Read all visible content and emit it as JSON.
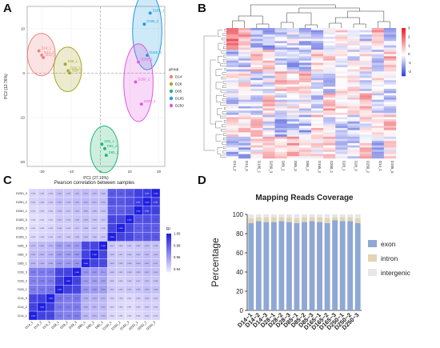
{
  "panels": {
    "a": "A",
    "b": "B",
    "c": "C",
    "d": "D"
  },
  "chart_data": [
    {
      "type": "scatter",
      "xlabel": "PC1 (27.19%)",
      "ylabel": "PC2 (12.76%)",
      "xlim": [
        -25,
        22
      ],
      "ylim": [
        -21,
        15
      ],
      "xticks": [
        -20,
        -10,
        0,
        10,
        20
      ],
      "yticks": [
        10,
        0,
        -10,
        -20
      ],
      "legend_title": "group",
      "legend_position": "right",
      "series": [
        {
          "name": "D14",
          "color": "#f08080",
          "points": [
            {
              "x": -21,
              "y": 5,
              "label": "D14_1"
            },
            {
              "x": -20,
              "y": 4,
              "label": "D14_2"
            },
            {
              "x": -19.5,
              "y": 3.5,
              "label": "D14_3"
            }
          ]
        },
        {
          "name": "D28",
          "color": "#a8a62a",
          "points": [
            {
              "x": -12,
              "y": 2,
              "label": "D28_1"
            },
            {
              "x": -11,
              "y": 0.5,
              "label": "D28_2"
            },
            {
              "x": -10.5,
              "y": 0,
              "label": "D28_3"
            }
          ]
        },
        {
          "name": "D85",
          "color": "#22b573",
          "points": [
            {
              "x": 0.5,
              "y": -16,
              "label": "D85_1"
            },
            {
              "x": 1.5,
              "y": -17,
              "label": "D85_2"
            },
            {
              "x": 2,
              "y": -18.5,
              "label": "D85_3"
            }
          ]
        },
        {
          "name": "D165",
          "color": "#1e9be0",
          "points": [
            {
              "x": 17,
              "y": 13.5,
              "label": "D165_1"
            },
            {
              "x": 15,
              "y": 11,
              "label": "D165_2"
            },
            {
              "x": 16,
              "y": 4,
              "label": "D165_3"
            }
          ]
        },
        {
          "name": "D250",
          "color": "#e056e0",
          "points": [
            {
              "x": 13,
              "y": 2.5,
              "label": "D250_1"
            },
            {
              "x": 12,
              "y": -2,
              "label": "D250_2"
            },
            {
              "x": 14,
              "y": -7,
              "label": "D250_3"
            }
          ]
        }
      ]
    },
    {
      "type": "heatmap",
      "columns": [
        "D14_2",
        "D14_3",
        "D165_1",
        "D250_3",
        "D85_1",
        "D85_3",
        "D85_2",
        "D165_2",
        "D250_1",
        "D28_1",
        "D28_3",
        "D250_2",
        "D14_1",
        "D165_3"
      ],
      "colorbar_ticks": [
        3,
        2,
        1,
        0,
        -1,
        -2
      ],
      "colorbar_range": [
        -2.5,
        3
      ],
      "colors": {
        "high": "#e8202a",
        "mid": "#ffffff",
        "low": "#2a3bd8"
      }
    },
    {
      "type": "heatmap",
      "title": "Pearson correlation between samples",
      "rows": [
        "D250_3",
        "D250_2",
        "D250_1",
        "D165_3",
        "D165_2",
        "D165_1",
        "D85_3",
        "D85_2",
        "D85_1",
        "D28_3",
        "D28_2",
        "D28_1",
        "D14_3",
        "D14_2",
        "D14_1"
      ],
      "columns": [
        "D14_1",
        "D14_2",
        "D14_3",
        "D28_1",
        "D28_2",
        "D28_3",
        "D85_1",
        "D85_2",
        "D85_3",
        "D165_1",
        "D165_2",
        "D165_3",
        "D250_1",
        "D250_2",
        "D250_3"
      ],
      "values": [
        [
          0.943,
          0.944,
          0.945,
          0.949,
          0.948,
          0.95,
          0.951,
          0.95,
          0.949,
          0.982,
          0.981,
          0.984,
          0.99,
          0.992,
          1.0
        ],
        [
          0.944,
          0.945,
          0.946,
          0.95,
          0.949,
          0.951,
          0.952,
          0.951,
          0.95,
          0.983,
          0.982,
          0.985,
          0.991,
          1.0,
          0.992
        ],
        [
          0.942,
          0.943,
          0.944,
          0.948,
          0.947,
          0.949,
          0.95,
          0.949,
          0.948,
          0.981,
          0.98,
          0.983,
          1.0,
          0.991,
          0.99
        ],
        [
          0.94,
          0.941,
          0.942,
          0.947,
          0.946,
          0.948,
          0.949,
          0.948,
          0.947,
          0.988,
          0.987,
          1.0,
          0.983,
          0.985,
          0.984
        ],
        [
          0.941,
          0.942,
          0.943,
          0.946,
          0.945,
          0.947,
          0.948,
          0.947,
          0.946,
          0.989,
          1.0,
          0.987,
          0.98,
          0.982,
          0.981
        ],
        [
          0.942,
          0.943,
          0.944,
          0.947,
          0.946,
          0.948,
          0.949,
          0.948,
          0.947,
          1.0,
          0.989,
          0.988,
          0.981,
          0.983,
          0.982
        ],
        [
          0.95,
          0.951,
          0.952,
          0.96,
          0.959,
          0.961,
          0.987,
          0.988,
          1.0,
          0.947,
          0.946,
          0.947,
          0.948,
          0.95,
          0.949
        ],
        [
          0.951,
          0.952,
          0.953,
          0.961,
          0.96,
          0.962,
          0.989,
          1.0,
          0.988,
          0.948,
          0.947,
          0.948,
          0.949,
          0.951,
          0.95
        ],
        [
          0.952,
          0.953,
          0.954,
          0.962,
          0.961,
          0.963,
          1.0,
          0.989,
          0.987,
          0.949,
          0.948,
          0.949,
          0.95,
          0.952,
          0.951
        ],
        [
          0.97,
          0.971,
          0.972,
          0.988,
          0.989,
          1.0,
          0.963,
          0.962,
          0.961,
          0.948,
          0.947,
          0.948,
          0.949,
          0.951,
          0.95
        ],
        [
          0.969,
          0.97,
          0.971,
          0.99,
          1.0,
          0.989,
          0.961,
          0.96,
          0.959,
          0.946,
          0.945,
          0.946,
          0.947,
          0.949,
          0.948
        ],
        [
          0.971,
          0.972,
          0.973,
          1.0,
          0.99,
          0.988,
          0.962,
          0.961,
          0.96,
          0.947,
          0.946,
          0.947,
          0.948,
          0.95,
          0.949
        ],
        [
          0.988,
          0.99,
          1.0,
          0.973,
          0.971,
          0.972,
          0.954,
          0.953,
          0.952,
          0.944,
          0.943,
          0.942,
          0.944,
          0.946,
          0.945
        ],
        [
          0.989,
          1.0,
          0.99,
          0.972,
          0.97,
          0.971,
          0.953,
          0.952,
          0.951,
          0.943,
          0.942,
          0.941,
          0.943,
          0.945,
          0.944
        ],
        [
          1.0,
          0.989,
          0.988,
          0.971,
          0.969,
          0.97,
          0.952,
          0.951,
          0.95,
          0.942,
          0.941,
          0.94,
          0.942,
          0.944,
          0.943
        ]
      ],
      "legend_title": "R²",
      "colorbar_ticks": [
        1.0,
        0.98,
        0.96,
        0.94
      ],
      "colorbar_range": [
        0.935,
        1.0
      ],
      "colors": {
        "high": "#2020e0",
        "low": "#f4eeff"
      }
    },
    {
      "type": "bar",
      "stacked": true,
      "title": "Mapping Reads Coverage",
      "ylabel": "Percentage",
      "ylim": [
        0,
        100
      ],
      "yticks": [
        0,
        20,
        40,
        60,
        80,
        100
      ],
      "categories": [
        "D14−1",
        "D14−2",
        "D14−3",
        "D28−1",
        "D28−2",
        "D28−3",
        "D85−1",
        "D85−2",
        "D85−3",
        "D165−1",
        "D165−2",
        "D165−3",
        "D250−1",
        "D250−2",
        "D250−3"
      ],
      "series": [
        {
          "name": "exon",
          "color": "#8fa7d4",
          "values": [
            91,
            93,
            92,
            92,
            93,
            92,
            91,
            92,
            93,
            92,
            91,
            94,
            93,
            93,
            91
          ]
        },
        {
          "name": "intron",
          "color": "#e2d4b5",
          "values": [
            5,
            4,
            5,
            5,
            4,
            5,
            5,
            5,
            4,
            5,
            5,
            3,
            4,
            4,
            5
          ]
        },
        {
          "name": "intergenic",
          "color": "#e7e7e7",
          "values": [
            4,
            3,
            3,
            3,
            3,
            3,
            4,
            3,
            3,
            3,
            4,
            3,
            3,
            3,
            4
          ]
        }
      ],
      "legend_position": "right"
    }
  ]
}
